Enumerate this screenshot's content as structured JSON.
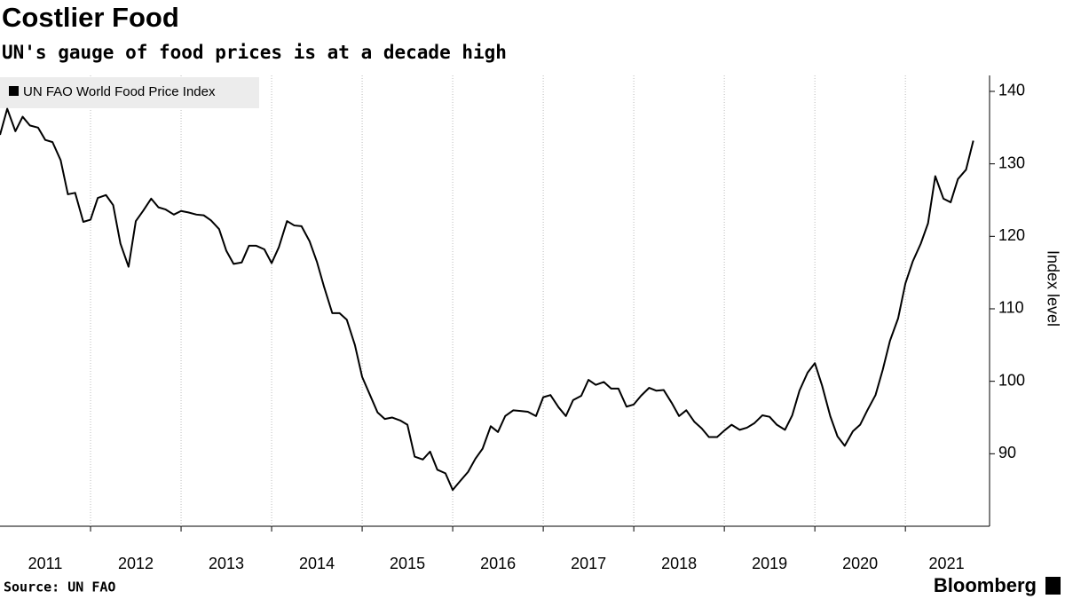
{
  "chart_data": {
    "type": "line",
    "title": "Costlier Food",
    "subtitle": "UN's gauge of food prices is at a decade high",
    "source": "Source: UN FAO",
    "brand": "Bloomberg",
    "y_label": "Index level",
    "x": [
      2011,
      2011.08,
      2011.17,
      2011.25,
      2011.33,
      2011.42,
      2011.5,
      2011.58,
      2011.67,
      2011.75,
      2011.83,
      2011.92,
      2012,
      2012.08,
      2012.17,
      2012.25,
      2012.33,
      2012.42,
      2012.5,
      2012.58,
      2012.67,
      2012.75,
      2012.83,
      2012.92,
      2013,
      2013.08,
      2013.17,
      2013.25,
      2013.33,
      2013.42,
      2013.5,
      2013.58,
      2013.67,
      2013.75,
      2013.83,
      2013.92,
      2014,
      2014.08,
      2014.17,
      2014.25,
      2014.33,
      2014.42,
      2014.5,
      2014.58,
      2014.67,
      2014.75,
      2014.83,
      2014.92,
      2015,
      2015.08,
      2015.17,
      2015.25,
      2015.33,
      2015.42,
      2015.5,
      2015.58,
      2015.67,
      2015.75,
      2015.83,
      2015.92,
      2016,
      2016.08,
      2016.17,
      2016.25,
      2016.33,
      2016.42,
      2016.5,
      2016.58,
      2016.67,
      2016.75,
      2016.83,
      2016.92,
      2017,
      2017.08,
      2017.17,
      2017.25,
      2017.33,
      2017.42,
      2017.5,
      2017.58,
      2017.67,
      2017.75,
      2017.83,
      2017.92,
      2018,
      2018.08,
      2018.17,
      2018.25,
      2018.33,
      2018.42,
      2018.5,
      2018.58,
      2018.67,
      2018.75,
      2018.83,
      2018.92,
      2019,
      2019.08,
      2019.17,
      2019.25,
      2019.33,
      2019.42,
      2019.5,
      2019.58,
      2019.67,
      2019.75,
      2019.83,
      2019.92,
      2020,
      2020.08,
      2020.17,
      2020.25,
      2020.33,
      2020.42,
      2020.5,
      2020.58,
      2020.67,
      2020.75,
      2020.83,
      2020.92,
      2021,
      2021.08,
      2021.17,
      2021.25,
      2021.33,
      2021.42,
      2021.5,
      2021.58,
      2021.67,
      2021.75
    ],
    "series": [
      {
        "name": "UN FAO World Food Price Index",
        "color": "#000000",
        "values": [
          134,
          137.6,
          134.5,
          136.5,
          135.3,
          135,
          133.3,
          133,
          130.5,
          125.8,
          126,
          122,
          122.3,
          125.3,
          125.7,
          124.3,
          119,
          115.8,
          122.1,
          123.5,
          125.2,
          124,
          123.7,
          123,
          123.5,
          123.3,
          123,
          122.9,
          122.2,
          121,
          118,
          116.2,
          116.4,
          118.7,
          118.7,
          118.2,
          116.3,
          118.5,
          122.1,
          121.5,
          121.4,
          119.3,
          116.5,
          113,
          109.4,
          109.4,
          108.5,
          105,
          100.6,
          98.3,
          95.7,
          94.8,
          95,
          94.6,
          94,
          89.6,
          89.2,
          90.3,
          87.8,
          87.3,
          85,
          86.2,
          87.5,
          89.3,
          90.7,
          93.8,
          93,
          95.2,
          96,
          95.9,
          95.8,
          95.2,
          97.8,
          98.1,
          96.4,
          95.2,
          97.4,
          98,
          100.2,
          99.5,
          99.9,
          99,
          99,
          96.5,
          96.8,
          98,
          99.1,
          98.7,
          98.8,
          97,
          95.2,
          96,
          94.4,
          93.5,
          92.3,
          92.3,
          93.2,
          94,
          93.3,
          93.6,
          94.2,
          95.3,
          95.1,
          94,
          93.3,
          95.3,
          98.7,
          101.2,
          102.5,
          99.4,
          95.2,
          92.4,
          91.1,
          93.1,
          94,
          96,
          98.1,
          101.6,
          105.6,
          108.7,
          113.5,
          116.5,
          119,
          121.8,
          128.3,
          125.2,
          124.7,
          127.9,
          129.2,
          133.2
        ]
      }
    ],
    "xlim": [
      2011,
      2021.91
    ],
    "xticks": [
      2011,
      2012,
      2013,
      2014,
      2015,
      2016,
      2017,
      2018,
      2019,
      2020,
      2021
    ],
    "ylim": [
      80,
      142.2
    ],
    "yticks": [
      90,
      100,
      110,
      120,
      130,
      140
    ],
    "y_axis_side": "right",
    "legend": "top-left"
  }
}
